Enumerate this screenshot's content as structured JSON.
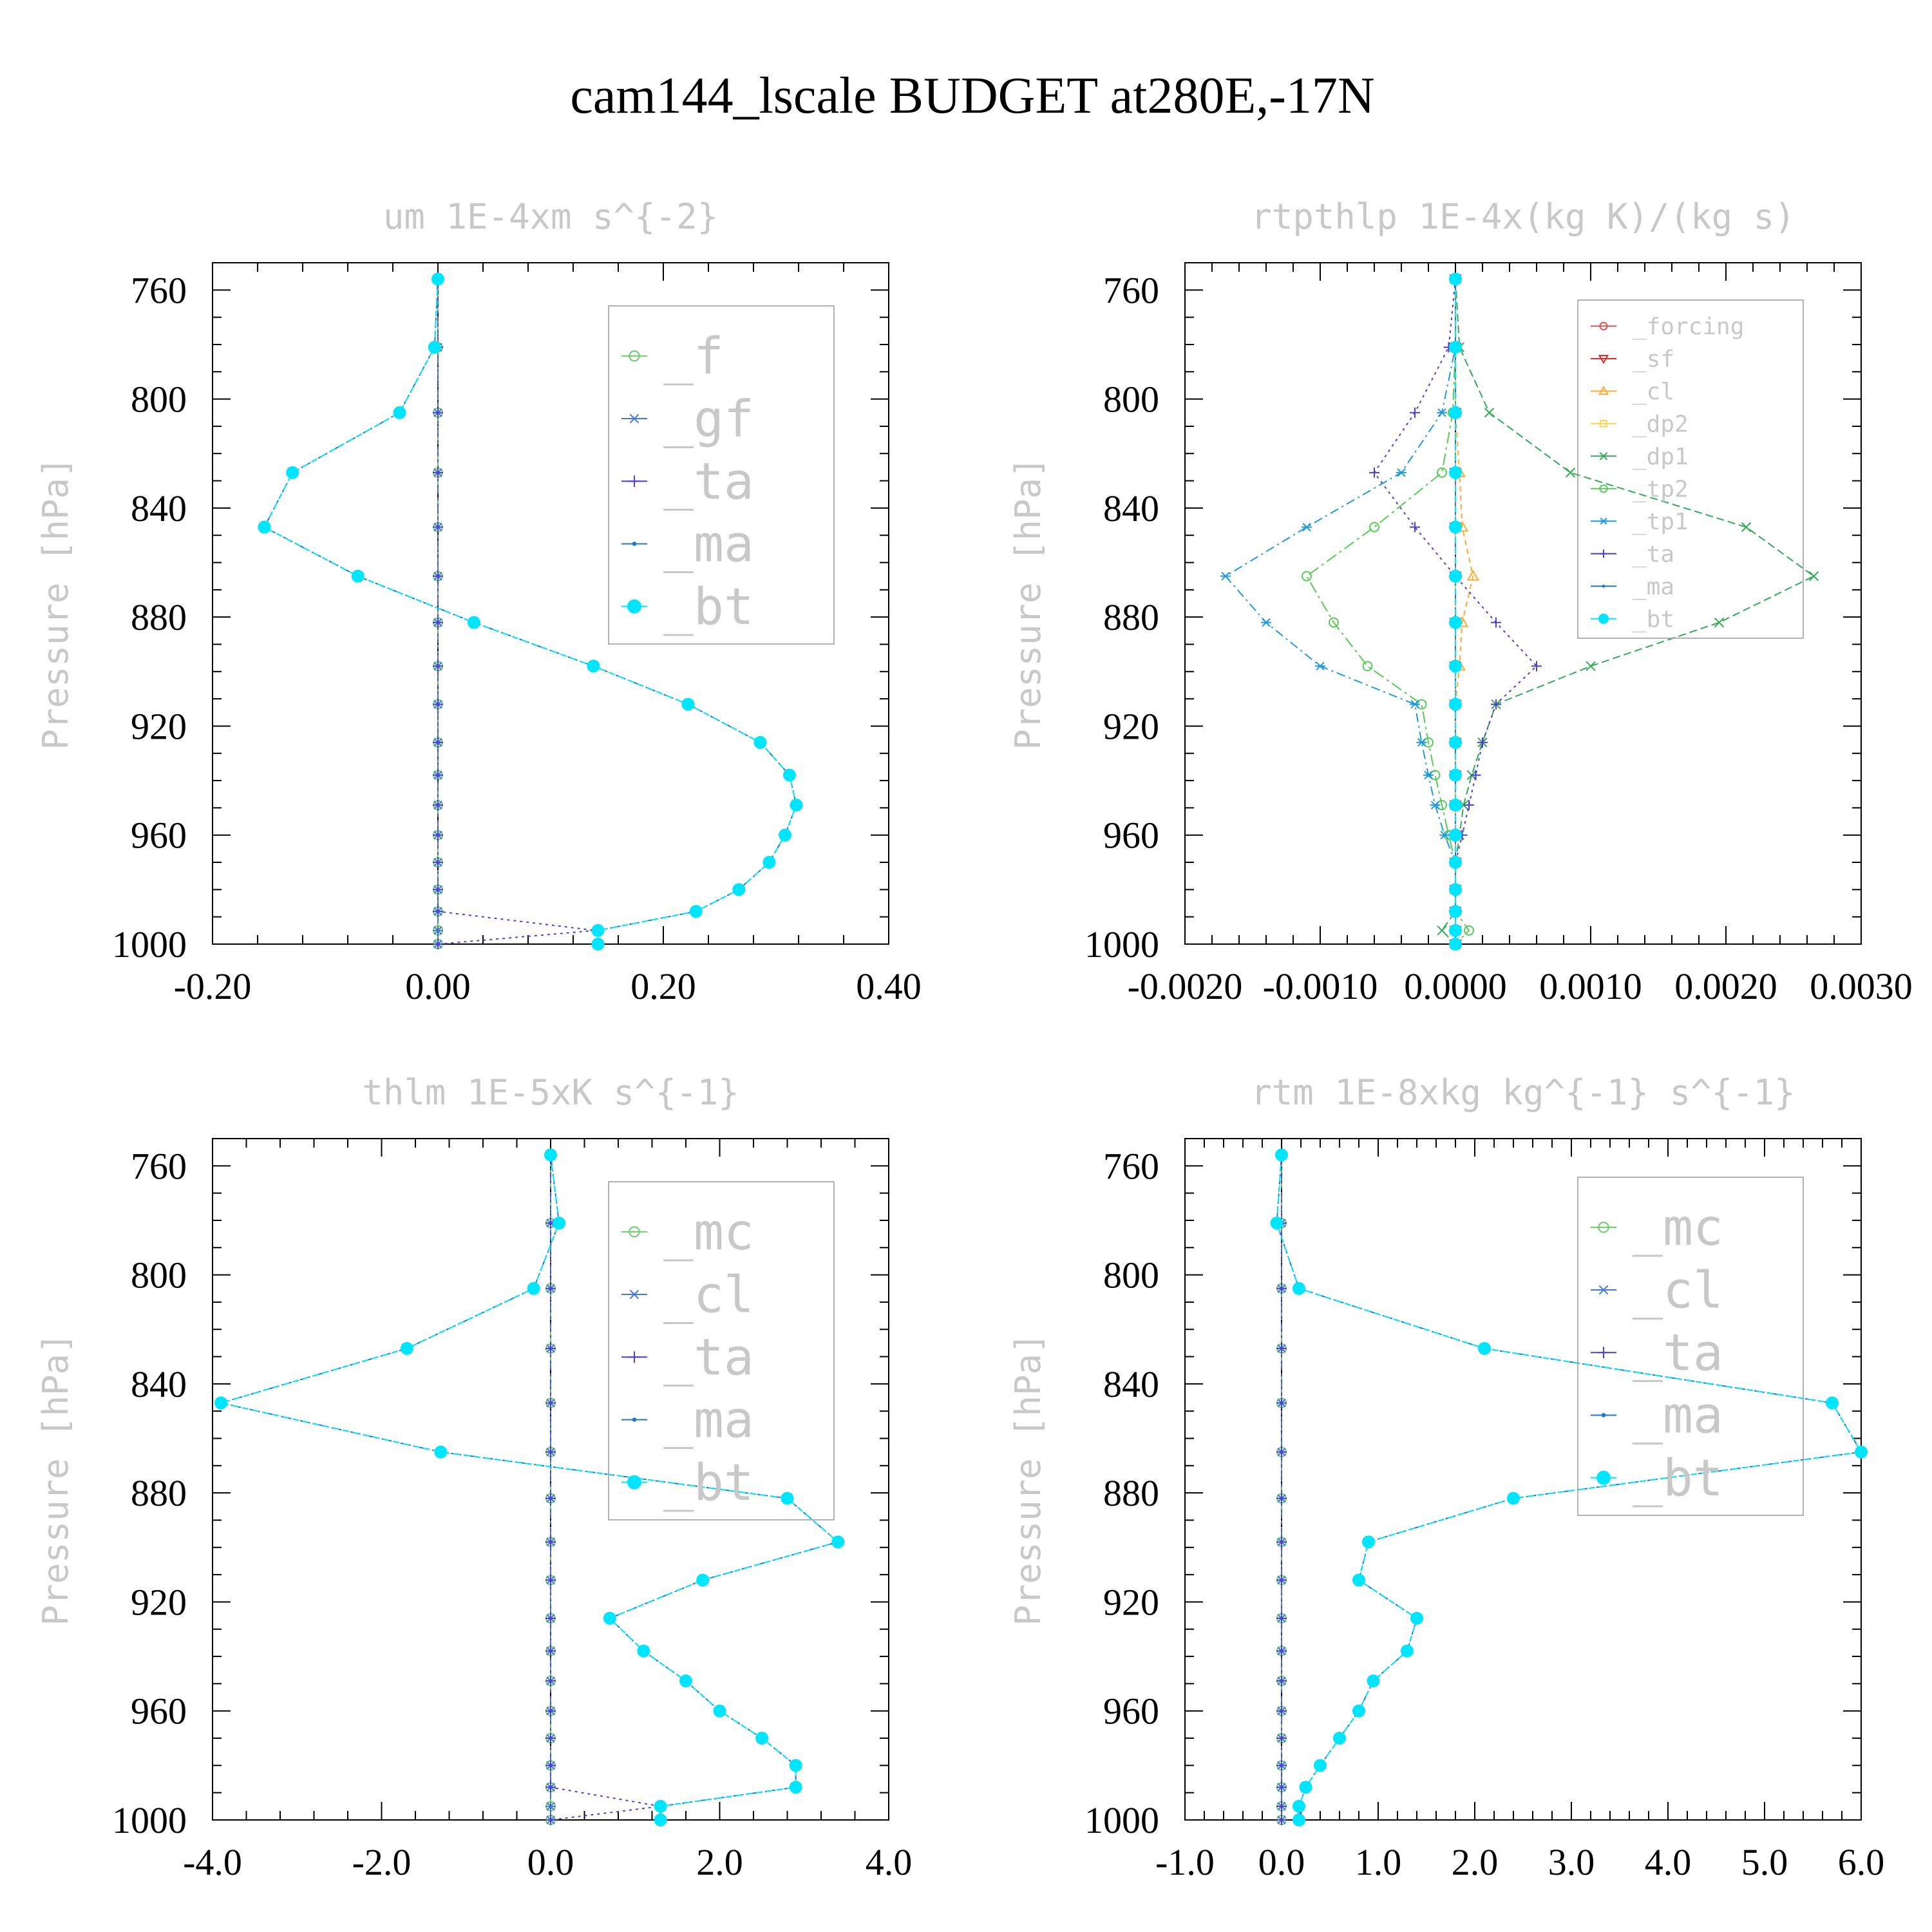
{
  "title": "cam144_lscale  BUDGET at280E,-17N",
  "ylabel": "Pressure [hPa]",
  "colors": {
    "f": "#66cc66",
    "gf": "#4477dd",
    "ta": "#4b3fd0",
    "ma": "#2277cc",
    "bt": "#00e5ff",
    "forcing": "#e05050",
    "sf": "#dd2222",
    "cl_orange": "#ffaa33",
    "dp2": "#ffd24d",
    "dp1": "#33aa55",
    "tp2": "#55cc55",
    "tp1": "#2299dd",
    "mc": "#66cc66",
    "cl": "#4477dd"
  },
  "chart_data": [
    {
      "type": "line",
      "title": "um  1E-4xm s^{-2}",
      "ylabel": "Pressure [hPa]",
      "xlim": [
        -0.2,
        0.4
      ],
      "ylim": [
        1000,
        750
      ],
      "xticks": [
        "-0.20",
        "0.00",
        "0.20",
        "0.40"
      ],
      "yticks": [
        "760",
        "800",
        "840",
        "880",
        "920",
        "960",
        "1000"
      ],
      "y": [
        756,
        781,
        805,
        827,
        847,
        865,
        882,
        898,
        912,
        926,
        938,
        949,
        960,
        970,
        980,
        988,
        995,
        1000
      ],
      "series": [
        {
          "name": "_f",
          "values": [
            0,
            0,
            0,
            0,
            0,
            0,
            0,
            0,
            0,
            0,
            0,
            0,
            0,
            0,
            0,
            0,
            0,
            0
          ]
        },
        {
          "name": "_gf",
          "values": [
            0,
            0,
            0,
            0,
            0,
            0,
            0,
            0,
            0,
            0,
            0,
            0,
            0,
            0,
            0,
            0,
            0,
            0
          ]
        },
        {
          "name": "_ta",
          "values": [
            0,
            0,
            0,
            0,
            0,
            0,
            0,
            0,
            0,
            0,
            0,
            0,
            0,
            0,
            0,
            0,
            0.14,
            0
          ]
        },
        {
          "name": "_ma",
          "values": [
            0,
            -0.003,
            -0.034,
            -0.129,
            -0.154,
            -0.071,
            0.032,
            0.138,
            0.222,
            0.286,
            0.312,
            0.318,
            0.308,
            0.294,
            0.267,
            0.229,
            0.142,
            0.142
          ]
        },
        {
          "name": "_bt",
          "values": [
            0,
            -0.003,
            -0.034,
            -0.129,
            -0.154,
            -0.071,
            0.032,
            0.138,
            0.222,
            0.286,
            0.312,
            0.318,
            0.308,
            0.294,
            0.267,
            0.229,
            0.142,
            0.142
          ]
        }
      ]
    },
    {
      "type": "line",
      "title": "rtpthlp  1E-4x(kg K)/(kg s)",
      "ylabel": "Pressure [hPa]",
      "xlim": [
        -0.002,
        0.003
      ],
      "ylim": [
        1000,
        750
      ],
      "xticks": [
        "-0.0020",
        "-0.0010",
        "0.0000",
        "0.0010",
        "0.0020",
        "0.0030"
      ],
      "yticks": [
        "760",
        "800",
        "840",
        "880",
        "920",
        "960",
        "1000"
      ],
      "y": [
        756,
        781,
        805,
        827,
        847,
        865,
        882,
        898,
        912,
        926,
        938,
        949,
        960,
        970,
        980,
        988,
        995,
        1000
      ],
      "series": [
        {
          "name": "_forcing",
          "values": [
            0,
            0,
            0,
            0,
            0,
            0,
            0,
            0,
            0,
            0,
            0,
            0,
            0,
            0,
            0,
            0,
            0,
            0
          ]
        },
        {
          "name": "_sf",
          "values": [
            0,
            0,
            0,
            0,
            0,
            0,
            0,
            0,
            0,
            0,
            0,
            0,
            0,
            0,
            0,
            0,
            0,
            0
          ]
        },
        {
          "name": "_cl",
          "values": [
            0,
            0,
            0,
            3e-05,
            5e-05,
            0.00013,
            5e-05,
            3e-05,
            0,
            0,
            0,
            0,
            0,
            0,
            0,
            0,
            0,
            0
          ]
        },
        {
          "name": "_dp2",
          "values": [
            0,
            0,
            0,
            0,
            0,
            0,
            0,
            0,
            0,
            0,
            0,
            0,
            0,
            0,
            0,
            0,
            0,
            0
          ]
        },
        {
          "name": "_dp1",
          "values": [
            0,
            3e-05,
            0.00025,
            0.00085,
            0.00215,
            0.00265,
            0.00195,
            0.001,
            0.0003,
            0.0002,
            0.00012,
            6e-05,
            3e-05,
            0,
            0,
            0,
            -0.0001,
            0
          ]
        },
        {
          "name": "_tp2",
          "values": [
            0,
            0,
            -2e-05,
            -0.0001,
            -0.0006,
            -0.0011,
            -0.0009,
            -0.00065,
            -0.00025,
            -0.0002,
            -0.00015,
            -0.0001,
            -5e-05,
            0,
            0,
            0,
            0.0001,
            0
          ]
        },
        {
          "name": "_tp1",
          "values": [
            0,
            0,
            -0.0001,
            -0.0004,
            -0.0011,
            -0.0017,
            -0.0014,
            -0.001,
            -0.0003,
            -0.00025,
            -0.0002,
            -0.00015,
            -8e-05,
            0,
            0,
            0,
            0,
            0
          ]
        },
        {
          "name": "_ta",
          "values": [
            0,
            -5e-05,
            -0.0003,
            -0.0006,
            -0.0003,
            0,
            0.0003,
            0.0006,
            0.0003,
            0.0002,
            0.00015,
            0.0001,
            5e-05,
            0,
            0,
            0,
            0,
            0
          ]
        },
        {
          "name": "_ma",
          "values": [
            0,
            0,
            0,
            0,
            0,
            0,
            0,
            0,
            0,
            0,
            0,
            0,
            0,
            0,
            0,
            0,
            0,
            0
          ]
        },
        {
          "name": "_bt",
          "values": [
            0,
            0,
            0,
            0,
            0,
            0,
            0,
            0,
            0,
            0,
            0,
            0,
            0,
            0,
            0,
            0,
            0,
            0
          ]
        }
      ]
    },
    {
      "type": "line",
      "title": "thlm  1E-5xK s^{-1}",
      "ylabel": "Pressure [hPa]",
      "xlim": [
        -4.0,
        4.0
      ],
      "ylim": [
        1000,
        750
      ],
      "xticks": [
        "-4.0",
        "-2.0",
        "0.0",
        "2.0",
        "4.0"
      ],
      "yticks": [
        "760",
        "800",
        "840",
        "880",
        "920",
        "960",
        "1000"
      ],
      "y": [
        756,
        781,
        805,
        827,
        847,
        865,
        882,
        898,
        912,
        926,
        938,
        949,
        960,
        970,
        980,
        988,
        995,
        1000
      ],
      "series": [
        {
          "name": "_mc",
          "values": [
            0,
            0,
            0,
            0,
            0,
            0,
            0,
            0,
            0,
            0,
            0,
            0,
            0,
            0,
            0,
            0,
            0,
            0
          ]
        },
        {
          "name": "_cl",
          "values": [
            0,
            0,
            0,
            0,
            0,
            0,
            0,
            0,
            0,
            0,
            0,
            0,
            0,
            0,
            0,
            0,
            0,
            0
          ]
        },
        {
          "name": "_ta",
          "values": [
            0,
            0,
            0,
            0,
            0,
            0,
            0,
            0,
            0,
            0,
            0,
            0,
            0,
            0,
            0,
            0,
            1.3,
            0
          ]
        },
        {
          "name": "_ma",
          "values": [
            0,
            0.1,
            -0.2,
            -1.7,
            -3.9,
            -1.3,
            2.8,
            3.4,
            1.8,
            0.7,
            1.1,
            1.6,
            2.0,
            2.5,
            2.9,
            2.9,
            1.3,
            1.3
          ]
        },
        {
          "name": "_bt",
          "values": [
            0,
            0.1,
            -0.2,
            -1.7,
            -3.9,
            -1.3,
            2.8,
            3.4,
            1.8,
            0.7,
            1.1,
            1.6,
            2.0,
            2.5,
            2.9,
            2.9,
            1.3,
            1.3
          ]
        }
      ]
    },
    {
      "type": "line",
      "title": "rtm  1E-8xkg kg^{-1} s^{-1}",
      "ylabel": "Pressure [hPa]",
      "xlim": [
        -1.0,
        6.0
      ],
      "ylim": [
        1000,
        750
      ],
      "xticks": [
        "-1.0",
        "0.0",
        "1.0",
        "2.0",
        "3.0",
        "4.0",
        "5.0",
        "6.0"
      ],
      "yticks": [
        "760",
        "800",
        "840",
        "880",
        "920",
        "960",
        "1000"
      ],
      "y": [
        756,
        781,
        805,
        827,
        847,
        865,
        882,
        898,
        912,
        926,
        938,
        949,
        960,
        970,
        980,
        988,
        995,
        1000
      ],
      "series": [
        {
          "name": "_mc",
          "values": [
            0,
            0,
            0,
            0,
            0,
            0,
            0,
            0,
            0,
            0,
            0,
            0,
            0,
            0,
            0,
            0,
            0,
            0
          ]
        },
        {
          "name": "_cl",
          "values": [
            0,
            0,
            0,
            0,
            0,
            0,
            0,
            0,
            0,
            0,
            0,
            0,
            0,
            0,
            0,
            0,
            0,
            0
          ]
        },
        {
          "name": "_ta",
          "values": [
            0,
            0,
            0,
            0,
            0,
            0,
            0,
            0,
            0,
            0,
            0,
            0,
            0,
            0,
            0,
            0,
            0,
            0
          ]
        },
        {
          "name": "_ma",
          "values": [
            0,
            -0.05,
            0.18,
            2.1,
            5.7,
            6.0,
            2.4,
            0.9,
            0.8,
            1.4,
            1.3,
            0.95,
            0.8,
            0.6,
            0.4,
            0.25,
            0.18,
            0.18
          ]
        },
        {
          "name": "_bt",
          "values": [
            0,
            -0.05,
            0.18,
            2.1,
            5.7,
            6.0,
            2.4,
            0.9,
            0.8,
            1.4,
            1.3,
            0.95,
            0.8,
            0.6,
            0.4,
            0.25,
            0.18,
            0.18
          ]
        }
      ]
    }
  ]
}
